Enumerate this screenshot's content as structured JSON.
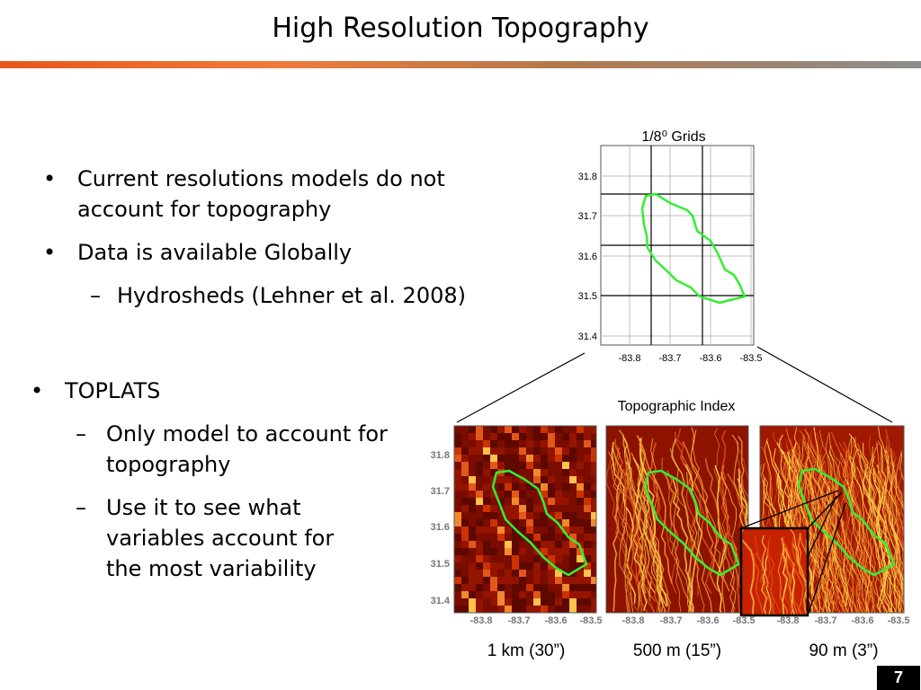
{
  "slide": {
    "title": "High Resolution Topography",
    "page_number": "7"
  },
  "bullets_top": {
    "item1": "Current resolutions models do not account for topography",
    "item2": "Data is available Globally",
    "sub1": "Hydrosheds (Lehner et al. 2008)"
  },
  "bullets_bottom": {
    "item1": "TOPLATS",
    "sub1": "Only model to account for topography",
    "sub2": "Use it to see what variables account for the most variability"
  },
  "grid_figure": {
    "title": "1/8⁰ Grids",
    "y_ticks": [
      "31.8",
      "31.7",
      "31.6",
      "31.5",
      "31.4"
    ],
    "x_ticks": [
      "-83.8",
      "-83.7",
      "-83.6",
      "-83.5"
    ]
  },
  "topo_figure": {
    "title": "Topographic Index",
    "y_ticks": [
      "31.8",
      "31.7",
      "31.6",
      "31.5",
      "31.4"
    ],
    "x_ticks": [
      "-83.8",
      "-83.7",
      "-83.6",
      "-83.5"
    ],
    "panel_labels": [
      "1 km (30”)",
      "500 m (15”)",
      "90 m (3”)"
    ]
  },
  "colors": {
    "accent_orange": "#e8561c",
    "watershed_outline": "#33ee33",
    "topo_dark": "#7a0c00",
    "topo_bright": "#ffd24a"
  }
}
